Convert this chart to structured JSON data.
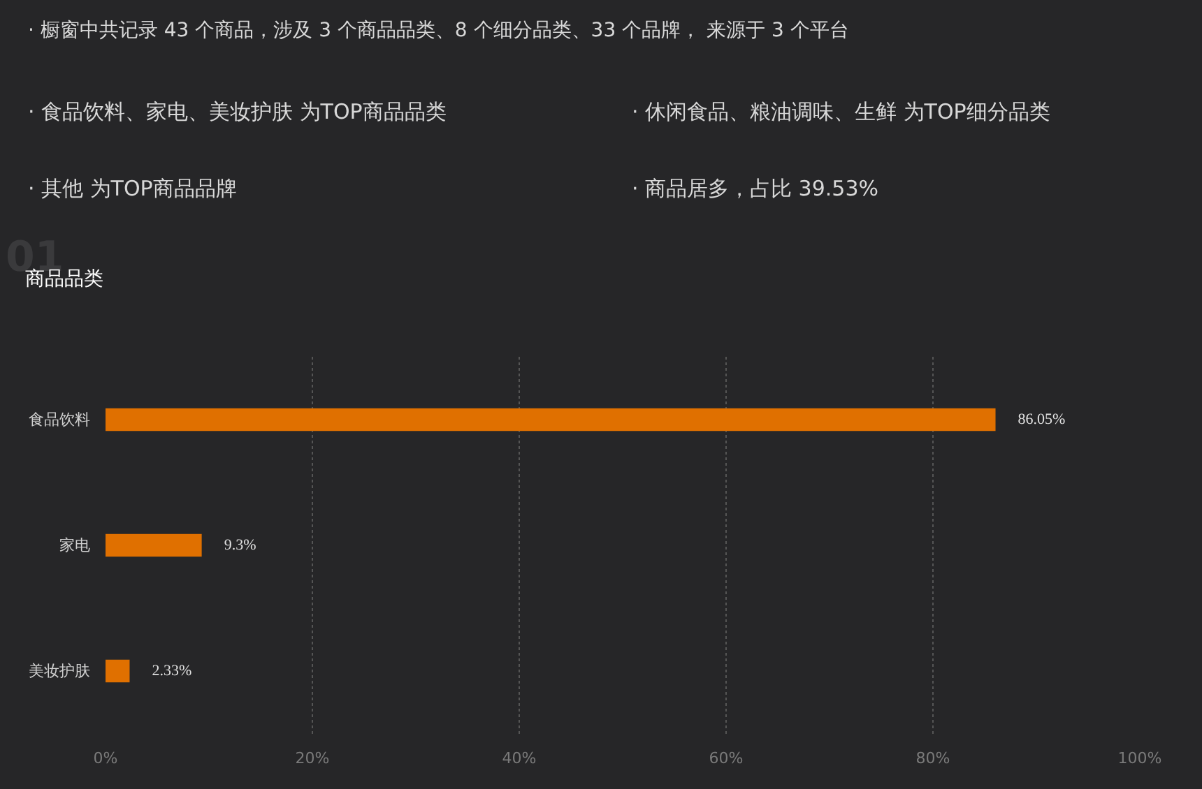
{
  "chart_data": {
    "type": "bar",
    "orientation": "horizontal",
    "title": "商品品类",
    "annotations": [
      "· 橱窗中共记录 43 个商品，涉及 3 个商品品类、8 个细分品类、33 个品牌， 来源于 3 个平台",
      "· 食品饮料、家电、美妆护肤 为TOP商品品类",
      "· 休闲食品、粮油调味、生鲜 为TOP细分品类",
      "· 其他 为TOP商品品牌",
      "· 商品居多，占比 39.53%",
      "01"
    ],
    "categories": [
      "食品饮料",
      "家电",
      "美妆护肤"
    ],
    "values": [
      86.05,
      9.3,
      2.33
    ],
    "value_labels": [
      "86.05%",
      "9.3%",
      "2.33%"
    ],
    "color": "#e07000",
    "xlim": [
      0,
      100
    ],
    "xticks": [
      {
        "value": 0,
        "label": "0%"
      },
      {
        "value": 20,
        "label": "20%"
      },
      {
        "value": 40,
        "label": "40%"
      },
      {
        "value": 60,
        "label": "60%"
      },
      {
        "value": 80,
        "label": "80%"
      },
      {
        "value": 100,
        "label": "100%"
      }
    ],
    "grid": "x"
  }
}
